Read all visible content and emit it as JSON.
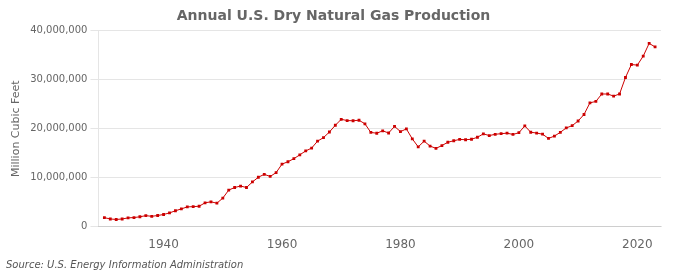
{
  "chart_data": {
    "type": "line",
    "title": "Annual U.S. Dry Natural Gas Production",
    "ylabel": "Million Cubic Feet",
    "source": "Source: U.S. Energy Information Administration",
    "color": "#cc0000",
    "marker": "square",
    "line_style": "solid",
    "grid": "y",
    "xlim": [
      1929,
      2024
    ],
    "xticks": [
      1940,
      1960,
      1980,
      2000,
      2020
    ],
    "ylim": [
      0,
      40000000
    ],
    "yticks": [
      0,
      {
        "value": 10000000,
        "label": "10,000,000"
      },
      {
        "value": 20000000,
        "label": "20,000,000"
      },
      {
        "value": 30000000,
        "label": "30,000,000"
      },
      {
        "value": 40000000,
        "label": "40,000,000"
      }
    ],
    "x": [
      1930,
      1931,
      1932,
      1933,
      1934,
      1935,
      1936,
      1937,
      1938,
      1939,
      1940,
      1941,
      1942,
      1943,
      1944,
      1945,
      1946,
      1947,
      1948,
      1949,
      1950,
      1951,
      1952,
      1953,
      1954,
      1955,
      1956,
      1957,
      1958,
      1959,
      1960,
      1961,
      1962,
      1963,
      1964,
      1965,
      1966,
      1967,
      1968,
      1969,
      1970,
      1971,
      1972,
      1973,
      1974,
      1975,
      1976,
      1977,
      1978,
      1979,
      1980,
      1981,
      1982,
      1983,
      1984,
      1985,
      1986,
      1987,
      1988,
      1989,
      1990,
      1991,
      1992,
      1993,
      1994,
      1995,
      1996,
      1997,
      1998,
      1999,
      2000,
      2001,
      2002,
      2003,
      2004,
      2005,
      2006,
      2007,
      2008,
      2009,
      2010,
      2011,
      2012,
      2013,
      2014,
      2015,
      2016,
      2017,
      2018,
      2019,
      2020,
      2021,
      2022,
      2023
    ],
    "values": [
      1825000,
      1560000,
      1457000,
      1557000,
      1779000,
      1848000,
      2007000,
      2237000,
      2102000,
      2265000,
      2478000,
      2798000,
      3235000,
      3620000,
      4022000,
      4082000,
      4155000,
      4860000,
      5065000,
      4779000,
      5828000,
      7457000,
      7988000,
      8282000,
      7985000,
      9120000,
      10082000,
      10679000,
      10243000,
      11024000,
      12771000,
      13254000,
      13876000,
      14662000,
      15462000,
      16040000,
      17457000,
      18171000,
      19323000,
      20698000,
      21920000,
      21660000,
      21622000,
      21731000,
      20997000,
      19236000,
      19078000,
      19565000,
      19124000,
      20473000,
      19403000,
      19956000,
      17929000,
      16287000,
      17456000,
      16454000,
      15980000,
      16556000,
      17227000,
      17539000,
      17810000,
      17750000,
      17843000,
      18247000,
      18948000,
      18599000,
      18855000,
      18987000,
      19092000,
      18824000,
      19182000,
      20567000,
      19280000,
      19109000,
      18877000,
      18013000,
      18490000,
      19266000,
      20159000,
      20620000,
      21577000,
      22905000,
      25286000,
      25568000,
      27089000,
      27085000,
      26658000,
      27094000,
      30458000,
      33110000,
      32988000,
      34837000,
      37433000,
      36700000
    ]
  }
}
